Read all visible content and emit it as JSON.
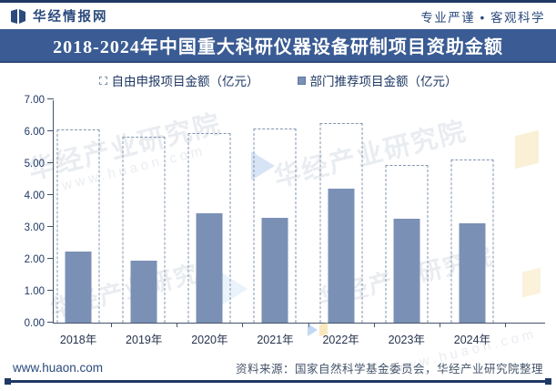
{
  "header": {
    "brand": "华经情报网",
    "slogan": "专业严谨 • 客观科学"
  },
  "title": "2018-2024年中国重大科研仪器设备研制项目资助金额",
  "legend": [
    {
      "label": "自由申报项目金额（亿元）",
      "marker": "dashed-outline-square"
    },
    {
      "label": "部门推荐项目金额（亿元）",
      "marker": "solid-square"
    }
  ],
  "chart_data": {
    "type": "bar",
    "title": "2018-2024年中国重大科研仪器设备研制项目资助金额",
    "categories": [
      "2018年",
      "2019年",
      "2020年",
      "2021年",
      "2022年",
      "2023年",
      "2024年"
    ],
    "series": [
      {
        "name": "自由申报项目金额（亿元）",
        "style": "dashed-outline",
        "values": [
          6.07,
          5.85,
          5.97,
          6.1,
          6.28,
          4.95,
          5.15
        ]
      },
      {
        "name": "部门推荐项目金额（亿元）",
        "style": "solid",
        "values": [
          2.24,
          1.95,
          3.45,
          3.3,
          4.21,
          3.26,
          3.12
        ]
      }
    ],
    "ylim": [
      0,
      7
    ],
    "ytick_labels": [
      "0.00",
      "1.00",
      "2.00",
      "3.00",
      "4.00",
      "5.00",
      "6.00",
      "7.00"
    ],
    "grid": false,
    "legend_position": "top-center"
  },
  "footer": {
    "site": "www.huaon.com",
    "source": "资料来源：国家自然科学基金委员会，华经产业研究院整理"
  },
  "watermark": {
    "text": "华经产业研究院",
    "url": "www.huaon.com"
  },
  "colors": {
    "accent_navy": "#203864",
    "banner_bg": "#3a5b93",
    "bar_fill": "#7b90b5",
    "dashed_border": "#8295ad",
    "axis": "#44536b",
    "text_navy": "#1f3864",
    "source_text": "#44546a"
  }
}
